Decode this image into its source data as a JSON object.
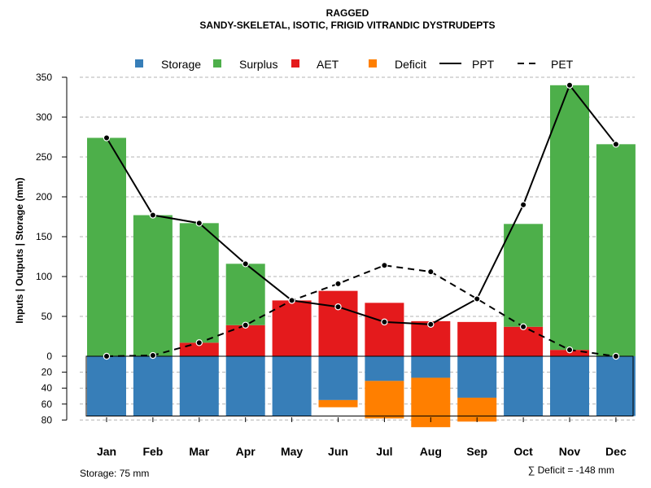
{
  "chart_data": {
    "type": "bar",
    "title": "RAGGED",
    "subtitle": "SANDY-SKELETAL, ISOTIC, FRIGID VITRANDIC DYSTRUDEPTS",
    "ylabel": "Inputs | Outputs | Storage     (mm)",
    "categories": [
      "Jan",
      "Feb",
      "Mar",
      "Apr",
      "May",
      "Jun",
      "Jul",
      "Aug",
      "Sep",
      "Oct",
      "Nov",
      "Dec"
    ],
    "ylim": [
      -80,
      350
    ],
    "upper_ticks": [
      "0",
      "50",
      "100",
      "150",
      "200",
      "250",
      "300",
      "350"
    ],
    "upper_tick_values": [
      0,
      50,
      100,
      150,
      200,
      250,
      300,
      350
    ],
    "lower_ticks": [
      "20",
      "40",
      "60",
      "80"
    ],
    "lower_tick_values": [
      20,
      40,
      60,
      80
    ],
    "legend": {
      "storage": "Storage",
      "surplus": "Surplus",
      "aet": "AET",
      "deficit": "Deficit",
      "ppt": "PPT",
      "pet": "PET"
    },
    "colors": {
      "storage": "#377EB8",
      "surplus": "#4DAF4A",
      "aet": "#E41A1C",
      "deficit": "#FF7F00"
    },
    "series": [
      {
        "name": "AET",
        "values": [
          0,
          0,
          17,
          39,
          70,
          82,
          67,
          44,
          43,
          37,
          8,
          0
        ]
      },
      {
        "name": "Surplus",
        "values": [
          274,
          177,
          150,
          77,
          0,
          0,
          0,
          0,
          0,
          129,
          332,
          266
        ]
      },
      {
        "name": "Storage",
        "values": [
          75,
          75,
          75,
          75,
          75,
          55,
          31,
          27,
          52,
          75,
          75,
          75
        ]
      },
      {
        "name": "Deficit",
        "values": [
          0,
          0,
          0,
          0,
          0,
          9,
          47,
          62,
          30,
          0,
          0,
          0
        ]
      },
      {
        "name": "PPT",
        "values": [
          274,
          177,
          167,
          116,
          70,
          62,
          43,
          40,
          72,
          190,
          340,
          266
        ]
      },
      {
        "name": "PET",
        "values": [
          0,
          1,
          17,
          39,
          70,
          91,
          114,
          106,
          72,
          37,
          8,
          0
        ]
      }
    ],
    "storage_capacity": 75
  },
  "footer": {
    "storage_note": "Storage: 75 mm",
    "deficit_note": "∑ Deficit = -148 mm"
  }
}
